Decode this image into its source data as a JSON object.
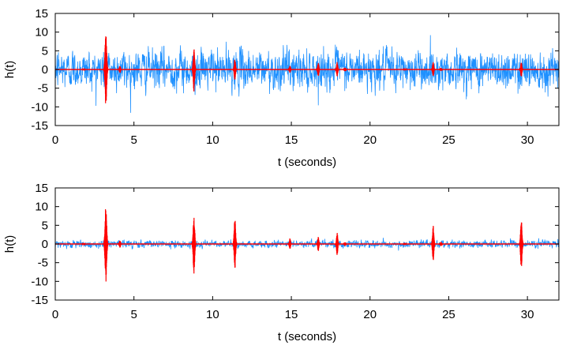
{
  "chart_data": [
    {
      "type": "line",
      "title": "",
      "xlabel": "t (seconds)",
      "ylabel": "h(t)",
      "xlim": [
        0,
        32
      ],
      "ylim": [
        -15,
        15
      ],
      "xticks": [
        0,
        5,
        10,
        15,
        20,
        25,
        30
      ],
      "yticks": [
        -15,
        -10,
        -5,
        0,
        5,
        10,
        15
      ],
      "grid": false,
      "legend": "none",
      "noise_color": "#1e90ff",
      "signal_color": "#ff0000",
      "series": [
        {
          "description": "noisy strain data",
          "kind": "noise",
          "amplitude_approx": 8,
          "peak_approx": 13
        },
        {
          "description": "signal bursts",
          "kind": "bursts",
          "bursts": [
            {
              "t": 1.8,
              "amplitude": 0.3
            },
            {
              "t": 3.2,
              "amplitude": 10
            },
            {
              "t": 4.1,
              "amplitude": 1
            },
            {
              "t": 8.8,
              "amplitude": 6
            },
            {
              "t": 11.4,
              "amplitude": 3
            },
            {
              "t": 14.9,
              "amplitude": 1
            },
            {
              "t": 16.7,
              "amplitude": 2
            },
            {
              "t": 17.9,
              "amplitude": 2
            },
            {
              "t": 18.4,
              "amplitude": 0.5
            },
            {
              "t": 22.2,
              "amplitude": 0.3
            },
            {
              "t": 24.0,
              "amplitude": 2
            },
            {
              "t": 24.5,
              "amplitude": 0.5
            },
            {
              "t": 29.6,
              "amplitude": 2
            }
          ]
        }
      ]
    },
    {
      "type": "line",
      "title": "",
      "xlabel": "t (seconds)",
      "ylabel": "h(t)",
      "xlim": [
        0,
        32
      ],
      "ylim": [
        -15,
        15
      ],
      "xticks": [
        0,
        5,
        10,
        15,
        20,
        25,
        30
      ],
      "yticks": [
        -15,
        -10,
        -5,
        0,
        5,
        10,
        15
      ],
      "grid": false,
      "legend": "none",
      "noise_color": "#1e90ff",
      "signal_color": "#ff0000",
      "series": [
        {
          "description": "whitened noise",
          "kind": "noise",
          "amplitude_approx": 1.5,
          "peak_approx": 3
        },
        {
          "description": "signal bursts",
          "kind": "bursts",
          "bursts": [
            {
              "t": 1.8,
              "amplitude": 0.3
            },
            {
              "t": 3.2,
              "amplitude": 11
            },
            {
              "t": 4.1,
              "amplitude": 1
            },
            {
              "t": 8.8,
              "amplitude": 8
            },
            {
              "t": 11.4,
              "amplitude": 7
            },
            {
              "t": 14.9,
              "amplitude": 1.5
            },
            {
              "t": 16.7,
              "amplitude": 2
            },
            {
              "t": 17.9,
              "amplitude": 3
            },
            {
              "t": 18.4,
              "amplitude": 0.5
            },
            {
              "t": 22.2,
              "amplitude": 0.3
            },
            {
              "t": 24.0,
              "amplitude": 5
            },
            {
              "t": 24.5,
              "amplitude": 0.6
            },
            {
              "t": 29.6,
              "amplitude": 7
            }
          ]
        }
      ]
    }
  ]
}
